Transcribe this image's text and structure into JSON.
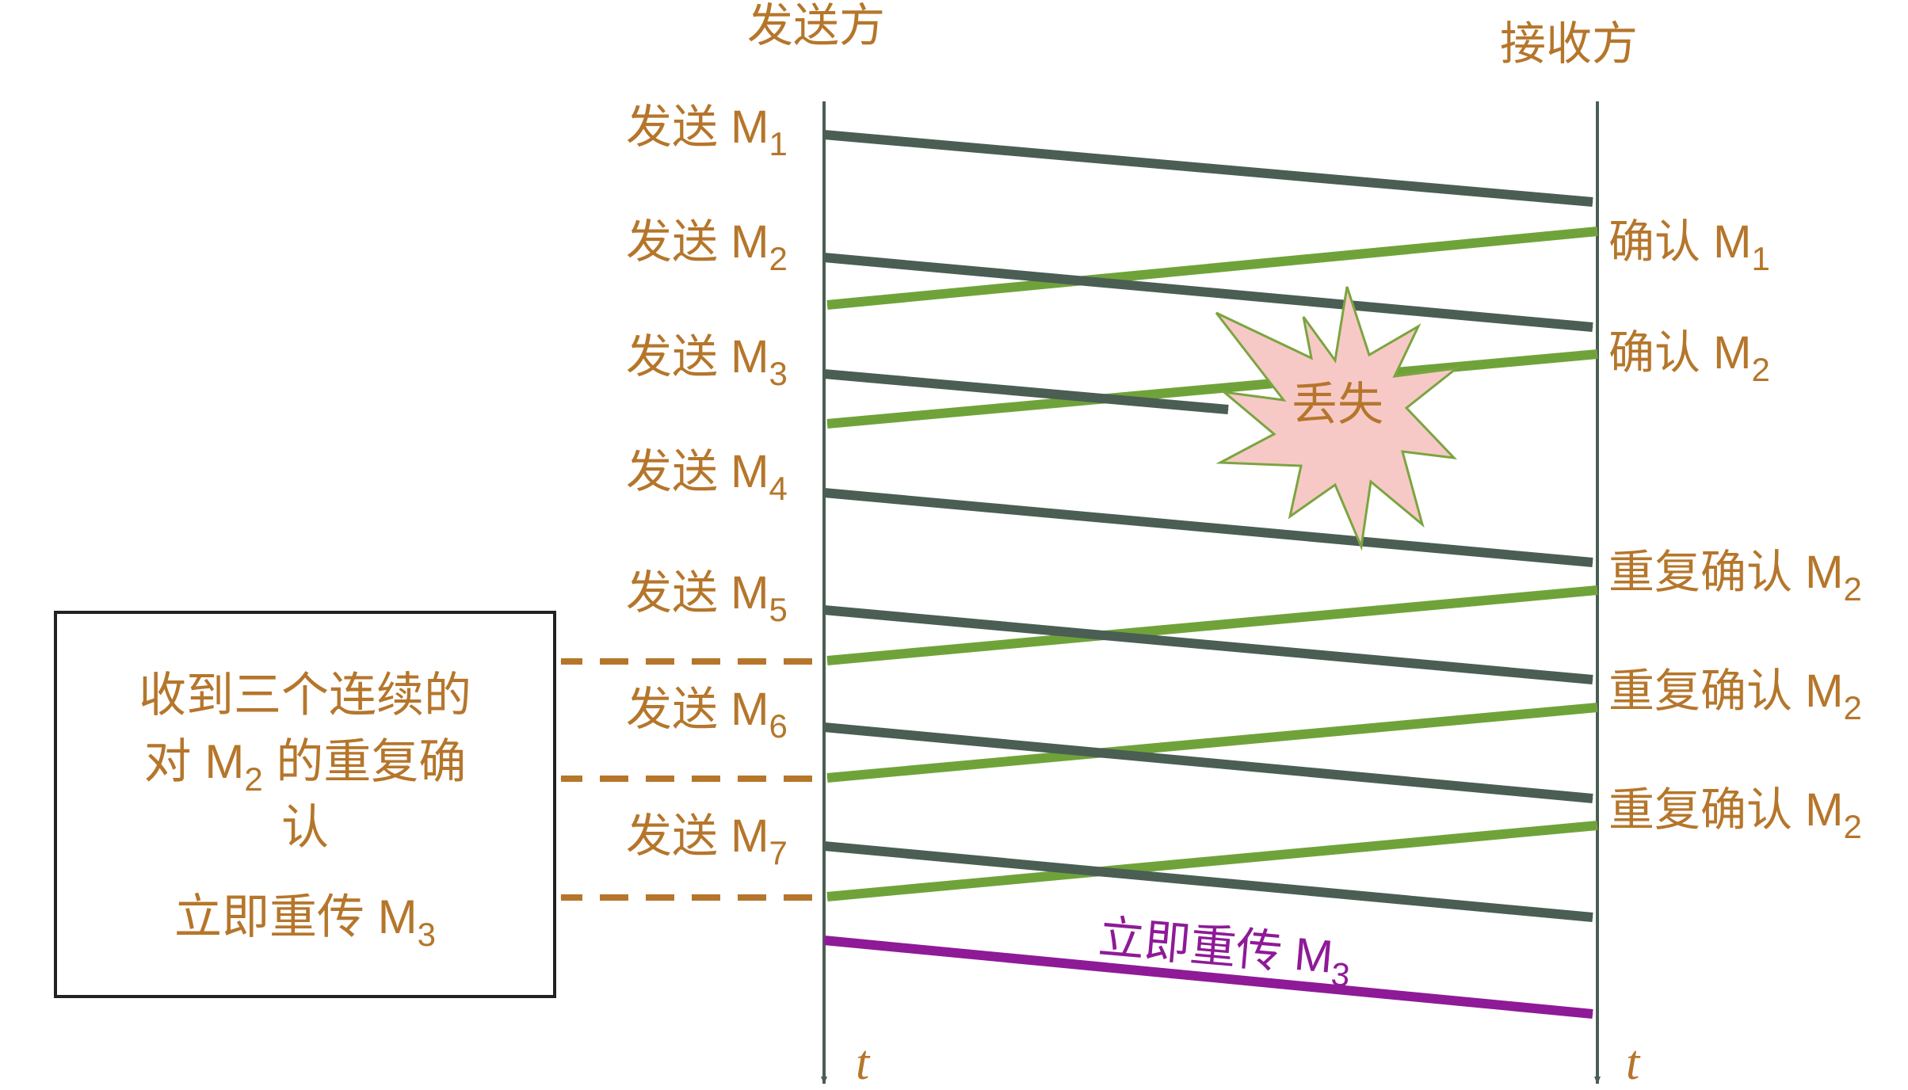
{
  "sender": {
    "title": "发送方"
  },
  "receiver": {
    "title": "接收方"
  },
  "time_axis_label": "t",
  "send_labels": [
    {
      "prefix": "发送 M",
      "sub": "1"
    },
    {
      "prefix": "发送 M",
      "sub": "2"
    },
    {
      "prefix": "发送 M",
      "sub": "3"
    },
    {
      "prefix": "发送 M",
      "sub": "4"
    },
    {
      "prefix": "发送 M",
      "sub": "5"
    },
    {
      "prefix": "发送 M",
      "sub": "6"
    },
    {
      "prefix": "发送 M",
      "sub": "7"
    }
  ],
  "ack_labels": [
    {
      "prefix": "确认 M",
      "sub": "1"
    },
    {
      "prefix": "确认 M",
      "sub": "2"
    },
    {
      "prefix": "重复确认 M",
      "sub": "2"
    },
    {
      "prefix": "重复确认 M",
      "sub": "2"
    },
    {
      "prefix": "重复确认 M",
      "sub": "2"
    }
  ],
  "lost_label": "丢失",
  "retransmit_label": {
    "prefix": "立即重传 M",
    "sub": "3"
  },
  "note_box": {
    "line1": "收到三个连续的",
    "line2_prefix": "对 M",
    "line2_sub": "2",
    "line2_suffix": " 的重复确",
    "line3": "认",
    "line4_prefix": "立即重传 M",
    "line4_sub": "3"
  },
  "colors": {
    "label": "#b5762b",
    "data_arrow": "#4a5e53",
    "ack_arrow": "#6fa33a",
    "retransmit": "#8e1a97",
    "lost_fill": "#f7c9c6",
    "lost_stroke": "#7aa540",
    "dashed": "#b5762b",
    "axis": "#4a5e53"
  }
}
